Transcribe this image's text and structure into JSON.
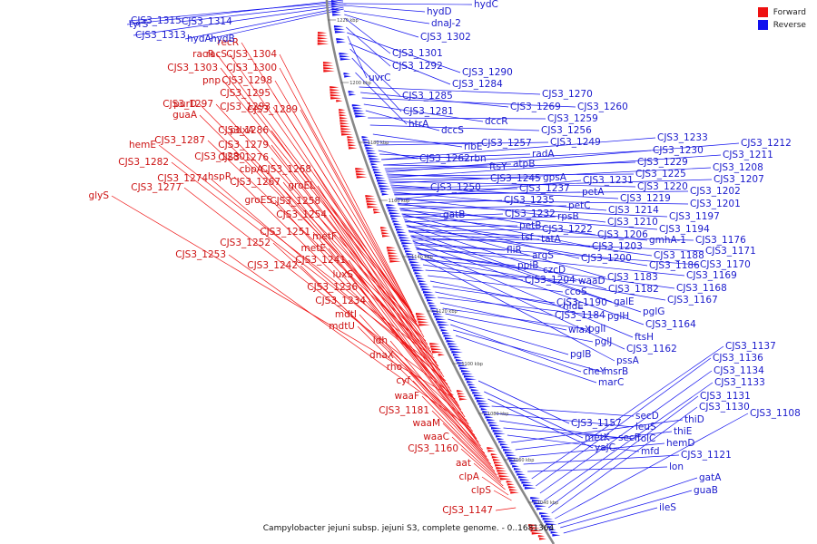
{
  "legend": {
    "items": [
      {
        "label": "Forward",
        "color": "#ee1111"
      },
      {
        "label": "Reverse",
        "color": "#1111ee"
      }
    ]
  },
  "caption": "Campylobacter jejuni subsp. jejuni S3, complete genome. - 0..1681364",
  "ticks": [
    "1220 kbp",
    "1200 kbp",
    "1180 kbp",
    "1160 kbp",
    "1140 kbp",
    "1120 kbp",
    "1100 kbp",
    "1080 kbp",
    "1060 kbp",
    "1040 kbp"
  ],
  "forward_genes": [
    "recR",
    "racS",
    "racR",
    "CJS3_1304",
    "CJS3_1303",
    "CJS3_1300",
    "pnp",
    "CJS3_1298",
    "CJS3_1295",
    "CJS3_1297",
    "purD",
    "CJS3_1293",
    "CJS3_1289",
    "guaA",
    "CJS3_1286",
    "pdxA",
    "CJS3_1287",
    "CJS3_1279",
    "hemE",
    "CJS3_1280",
    "CJS3_1276",
    "CJS3_1282",
    "cbpA",
    "CJS3_1268",
    "CJS3_1274",
    "hspR",
    "CJS3_1267",
    "groEL",
    "CJS3_1277",
    "glyS",
    "groES",
    "CJS3_1258",
    "CJS3_1254",
    "CJS3_1251",
    "metF",
    "CJS3_1252",
    "metE",
    "CJS3_1253",
    "CJS3_1241",
    "CJS3_1242",
    "luxS",
    "CJS3_1236",
    "CJS3_1234",
    "mdtI",
    "mdtU",
    "ldh",
    "dnaX",
    "rho",
    "cyf",
    "waaF",
    "CJS3_1181",
    "waaM",
    "waaC",
    "CJS3_1160",
    "aat",
    "clpA",
    "clpS",
    "CJS3_1147"
  ],
  "reverse_genes": [
    "tyrS",
    "CJS3_1315",
    "CJS3_1314",
    "CJS3_1313",
    "hydA",
    "hydB",
    "hydC",
    "hydD",
    "dnaJ-2",
    "CJS3_1302",
    "CJS3_1301",
    "CJS3_1292",
    "CJS3_1290",
    "uvrC",
    "CJS3_1284",
    "CJS3_1285",
    "CJS3_1281",
    "htrA",
    "CJS3_1270",
    "CJS3_1269",
    "CJS3_1260",
    "dccR",
    "dccS",
    "CJS3_1259",
    "CJS3_1256",
    "ribE",
    "CJS3_1257",
    "CJS3_1249",
    "CJS3_1262",
    "rbn",
    "radA",
    "ftsY",
    "atpB",
    "CJS3_1245",
    "gpsA",
    "CJS3_1250",
    "CJS3_1237",
    "petA",
    "CJS3_1231",
    "CJS3_1235",
    "petC",
    "gatB",
    "CJS3_1232",
    "rpsB",
    "petB",
    "CJS3_1222",
    "tsf",
    "tatA",
    "fliR",
    "argS",
    "ppiB",
    "czcD",
    "CJS3_1204",
    "waaD",
    "ccoS",
    "hldE",
    "CJS3_1190",
    "CJS3_1184",
    "pglH",
    "wlaX",
    "pglI",
    "pglJ",
    "pglB",
    "cheY",
    "msrB",
    "marC",
    "CJS3_1233",
    "CJS3_1230",
    "CJS3_1229",
    "CJS3_1225",
    "CJS3_1220",
    "CJS3_1219",
    "CJS3_1214",
    "CJS3_1210",
    "CJS3_1206",
    "CJS3_1203",
    "CJS3_1200",
    "CJS3_1183",
    "CJS3_1182",
    "galE",
    "pglG",
    "CJS3_1164",
    "ftsH",
    "CJS3_1162",
    "pssA",
    "CJS3_1212",
    "CJS3_1211",
    "CJS3_1208",
    "CJS3_1207",
    "CJS3_1202",
    "CJS3_1201",
    "CJS3_1197",
    "CJS3_1194",
    "gmhA-1",
    "CJS3_1188",
    "CJS3_1186",
    "CJS3_1176",
    "CJS3_1171",
    "CJS3_1170",
    "CJS3_1169",
    "CJS3_1168",
    "CJS3_1167",
    "CJS3_1157",
    "metK",
    "yajC",
    "secD",
    "leuS",
    "secF",
    "folC",
    "mfd",
    "thiD",
    "thiE",
    "hemD",
    "CJS3_1121",
    "lon",
    "CJS3_1137",
    "CJS3_1136",
    "CJS3_1134",
    "CJS3_1133",
    "CJS3_1131",
    "CJS3_1130",
    "CJS3_1108",
    "gatA",
    "guaB",
    "ileS"
  ]
}
